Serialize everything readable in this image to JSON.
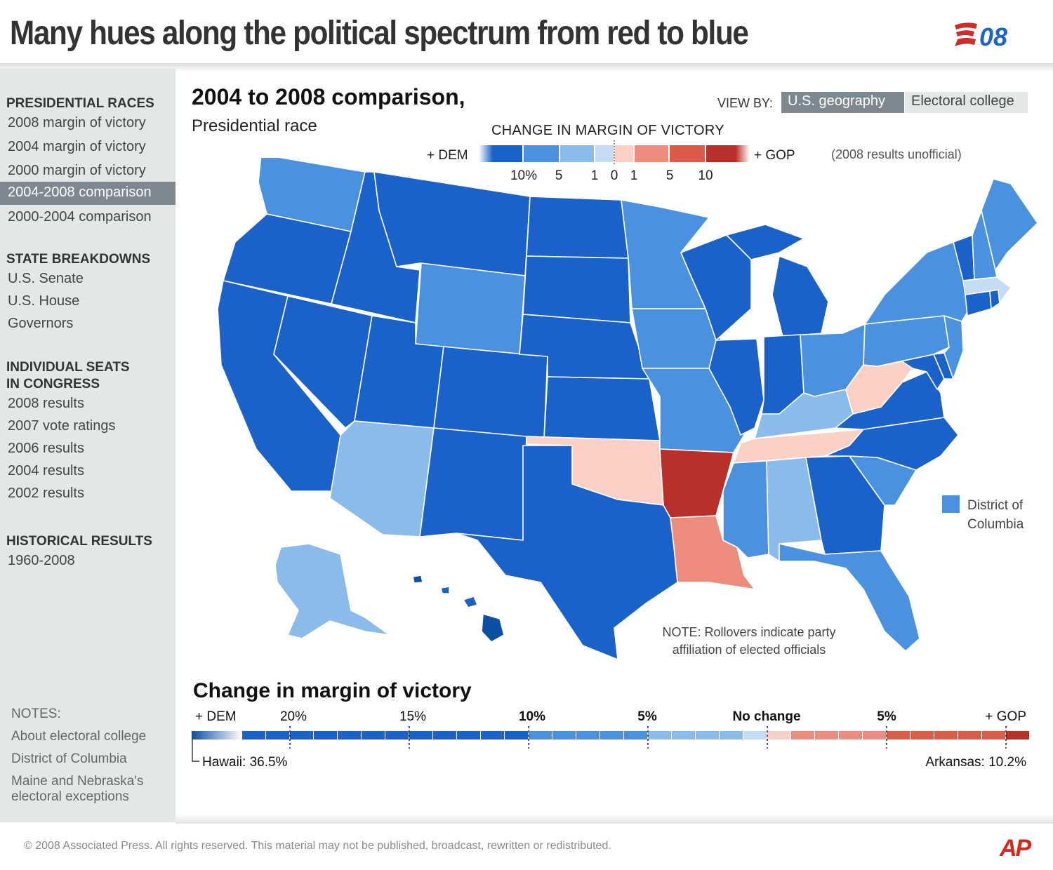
{
  "header": {
    "title": "Many hues along the political spectrum from red to blue",
    "logo_text": "E08"
  },
  "sidebar": {
    "sections": [
      {
        "heading": "PRESIDENTIAL RACES",
        "items": [
          "2008 margin of victory",
          "2004 margin of victory",
          "2000 margin of victory",
          "2004-2008 comparison",
          "2000-2004 comparison"
        ],
        "active": "2004-2008 comparison"
      },
      {
        "heading": "STATE BREAKDOWNS",
        "items": [
          "U.S. Senate",
          "U.S. House",
          "Governors"
        ]
      },
      {
        "heading": "INDIVIDUAL SEATS",
        "heading2": "IN CONGRESS",
        "items": [
          "2008 results",
          "2007 vote ratings",
          "2006 results",
          "2004 results",
          "2002 results"
        ]
      },
      {
        "heading": "HISTORICAL RESULTS",
        "items": [
          "1960-2008"
        ]
      }
    ],
    "notes": {
      "heading": "NOTES:",
      "links": [
        "About electoral college",
        "District of Columbia",
        "Maine and Nebraska's",
        "electoral exceptions"
      ]
    }
  },
  "main": {
    "title": "2004 to 2008 comparison,",
    "subtitle": "Presidential race",
    "view_by": {
      "label": "VIEW BY:",
      "options": [
        "U.S. geography",
        "Electoral college"
      ],
      "selected": "U.S. geography"
    },
    "legend": {
      "title": "CHANGE IN MARGIN OF VICTORY",
      "left_label": "+ DEM",
      "right_label": "+ GOP",
      "ticks": [
        "10%",
        "5",
        "1",
        "0",
        "1",
        "5",
        "10"
      ],
      "dem_colors": [
        "#1a62c9",
        "#4a92e0",
        "#8bbbeb",
        "#c6dcf5"
      ],
      "gop_colors": [
        "#fcd0c4",
        "#ed8c7c",
        "#dc5a48",
        "#b9302a"
      ]
    },
    "unofficial_note": "(2008 results unofficial)",
    "dc_label": [
      "District of",
      "Columbia"
    ],
    "map_note": [
      "NOTE: Rollovers indicate party",
      "affiliation of elected officials"
    ]
  },
  "scale": {
    "title": "Change in margin of victory",
    "labels": [
      "+ DEM",
      "20%",
      "15%",
      "10%",
      "5%",
      "No change",
      "5%",
      "+ GOP"
    ],
    "extreme_left": "Hawaii: 36.5%",
    "extreme_right": "Arkansas: 10.2%"
  },
  "footer": {
    "copyright": "©  2008 Associated Press. All rights reserved. This material may not be published, broadcast, rewritten or redistributed.",
    "ap_logo": "AP"
  },
  "map_data": {
    "categories": {
      "dem_strong": "#1a62c9",
      "dem_mid": "#4a92e0",
      "dem_light": "#8bbbeb",
      "dem_faint": "#c6dcf5",
      "gop_faint": "#fcd0c4",
      "gop_mid": "#ed8c7c",
      "gop_strong": "#b9302a",
      "extreme_dem": "#0d4fa3"
    }
  }
}
